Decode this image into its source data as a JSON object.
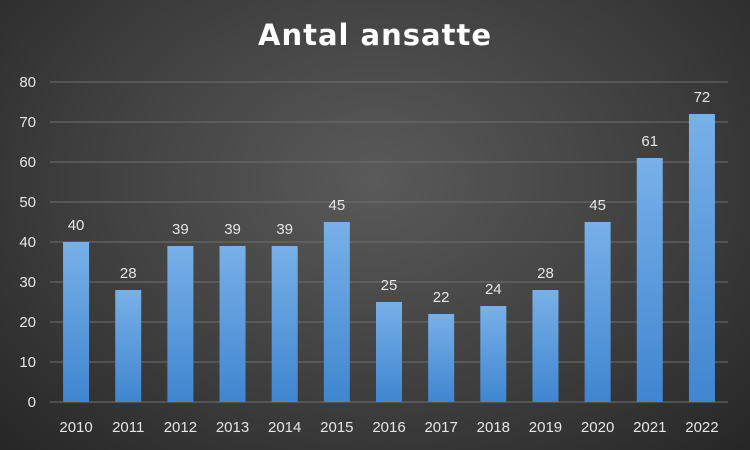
{
  "chart_data": {
    "type": "bar",
    "title": "Antal ansatte",
    "xlabel": "",
    "ylabel": "",
    "categories": [
      "2010",
      "2011",
      "2012",
      "2013",
      "2014",
      "2015",
      "2016",
      "2017",
      "2018",
      "2019",
      "2020",
      "2021",
      "2022"
    ],
    "values": [
      40,
      28,
      39,
      39,
      39,
      45,
      25,
      22,
      24,
      28,
      45,
      61,
      72
    ],
    "ylim": [
      0,
      80
    ],
    "yticks": [
      0,
      10,
      20,
      30,
      40,
      50,
      60,
      70,
      80
    ],
    "grid": true,
    "legend": "none",
    "data_labels": true,
    "colors": {
      "bar_top": "#79b0e8",
      "bar_bottom": "#3f86d0",
      "grid": "#6e6e6e",
      "text": "#e6e6e6",
      "title": "#ffffff"
    }
  }
}
